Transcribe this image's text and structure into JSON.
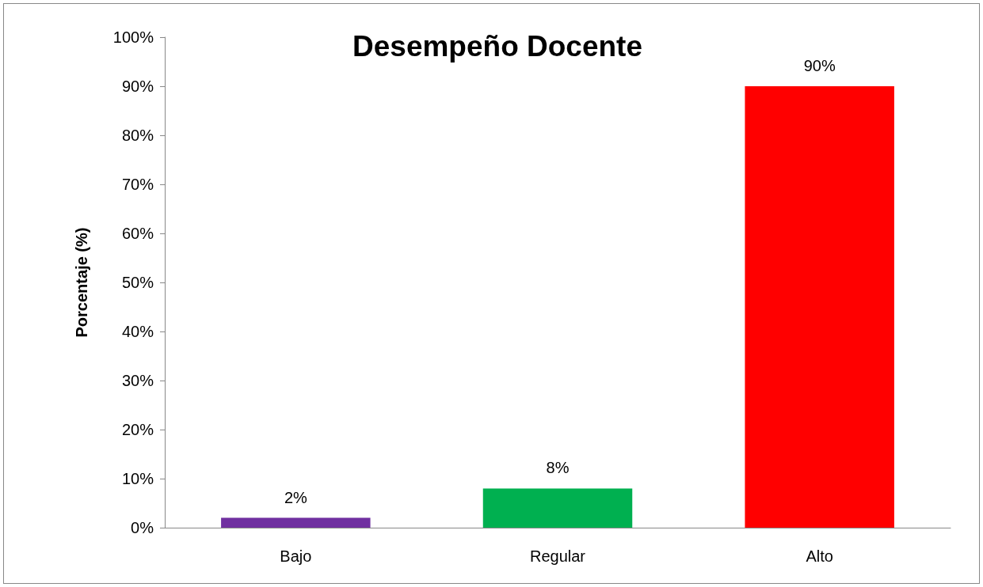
{
  "chart_data": {
    "type": "bar",
    "title": "Desempeño Docente",
    "ylabel": "Porcentaje (%)",
    "categories": [
      "Bajo",
      "Regular",
      "Alto"
    ],
    "values": [
      2,
      8,
      90
    ],
    "colors": [
      "#7030a0",
      "#00b050",
      "#ff0000"
    ],
    "value_labels": [
      "2%",
      "8%",
      "90%"
    ],
    "ylim": [
      0,
      100
    ],
    "yticks": [
      {
        "value": 0,
        "label": "0%"
      },
      {
        "value": 10,
        "label": "10%"
      },
      {
        "value": 20,
        "label": "20%"
      },
      {
        "value": 30,
        "label": "30%"
      },
      {
        "value": 40,
        "label": "40%"
      },
      {
        "value": 50,
        "label": "50%"
      },
      {
        "value": 60,
        "label": "60%"
      },
      {
        "value": 70,
        "label": "70%"
      },
      {
        "value": 80,
        "label": "80%"
      },
      {
        "value": 90,
        "label": "90%"
      },
      {
        "value": 100,
        "label": "100%"
      }
    ],
    "grid": false
  }
}
